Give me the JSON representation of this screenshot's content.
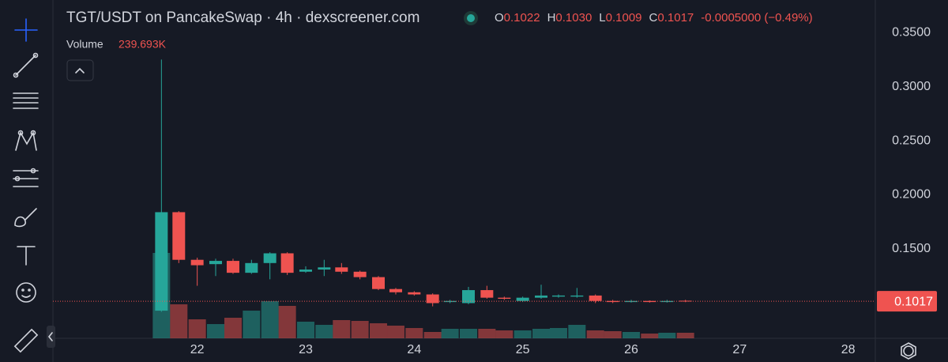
{
  "header": {
    "title": "TGT/USDT on PancakeSwap · 4h · dexscreener.com",
    "ohlc": [
      {
        "key": "O",
        "value": "0.1022"
      },
      {
        "key": "H",
        "value": "0.1030"
      },
      {
        "key": "L",
        "value": "0.1009"
      },
      {
        "key": "C",
        "value": "0.1017"
      }
    ],
    "change": "-0.0005000 (−0.49%)"
  },
  "chart_data": {
    "type": "candlestick",
    "x": [
      21.67,
      21.83,
      22,
      22.17,
      22.33,
      22.5,
      22.67,
      22.83,
      23,
      23.17,
      23.33,
      23.5,
      23.67,
      23.83,
      24,
      24.17,
      24.33,
      24.5,
      24.67,
      24.83,
      25,
      25.17,
      25.33,
      25.5,
      25.67,
      25.83,
      26,
      26.17,
      26.33,
      26.5
    ],
    "open": [
      0.093,
      0.184,
      0.14,
      0.136,
      0.139,
      0.128,
      0.137,
      0.146,
      0.129,
      0.131,
      0.133,
      0.129,
      0.124,
      0.113,
      0.11,
      0.108,
      0.101,
      0.1,
      0.112,
      0.105,
      0.102,
      0.105,
      0.106,
      0.106,
      0.107,
      0.102,
      0.101,
      0.102,
      0.101,
      0.1022
    ],
    "high": [
      0.325,
      0.185,
      0.142,
      0.141,
      0.141,
      0.14,
      0.147,
      0.147,
      0.134,
      0.14,
      0.137,
      0.13,
      0.125,
      0.114,
      0.111,
      0.109,
      0.103,
      0.115,
      0.116,
      0.106,
      0.106,
      0.117,
      0.108,
      0.114,
      0.108,
      0.103,
      0.103,
      0.1025,
      0.103,
      0.103
    ],
    "low": [
      0.092,
      0.137,
      0.116,
      0.125,
      0.127,
      0.127,
      0.122,
      0.126,
      0.128,
      0.125,
      0.127,
      0.122,
      0.112,
      0.108,
      0.107,
      0.097,
      0.1,
      0.099,
      0.104,
      0.103,
      0.101,
      0.104,
      0.105,
      0.105,
      0.1,
      0.1,
      0.1005,
      0.1005,
      0.1005,
      0.1009
    ],
    "close": [
      0.184,
      0.14,
      0.135,
      0.139,
      0.128,
      0.137,
      0.146,
      0.128,
      0.131,
      0.133,
      0.129,
      0.124,
      0.113,
      0.11,
      0.108,
      0.1,
      0.102,
      0.112,
      0.105,
      0.104,
      0.105,
      0.107,
      0.107,
      0.107,
      0.102,
      0.101,
      0.102,
      0.101,
      0.102,
      0.1017
    ],
    "volume_name": "Volume",
    "volume_value_label": "239.693K",
    "volume": [
      3698000,
      1472000,
      822000,
      616000,
      890000,
      1198000,
      1609000,
      1404000,
      719000,
      582000,
      788000,
      753000,
      651000,
      548000,
      445000,
      274000,
      411000,
      411000,
      411000,
      342000,
      342000,
      411000,
      445000,
      582000,
      342000,
      308000,
      274000,
      205000,
      240000,
      239693
    ],
    "xlim": [
      20.67,
      28.25
    ],
    "xticks": [
      22,
      23,
      24,
      25,
      26,
      27,
      28
    ],
    "ylim": [
      0.0675,
      0.38
    ],
    "yticks": [
      {
        "value": 0.15,
        "label": "0.1500"
      },
      {
        "value": 0.2,
        "label": "0.2000"
      },
      {
        "value": 0.25,
        "label": "0.2500"
      },
      {
        "value": 0.3,
        "label": "0.3000"
      },
      {
        "value": 0.35,
        "label": "0.3500"
      }
    ],
    "colors": {
      "up": "#26a69a",
      "down": "#ef5350"
    },
    "grid": false,
    "last_price_line": true
  }
}
